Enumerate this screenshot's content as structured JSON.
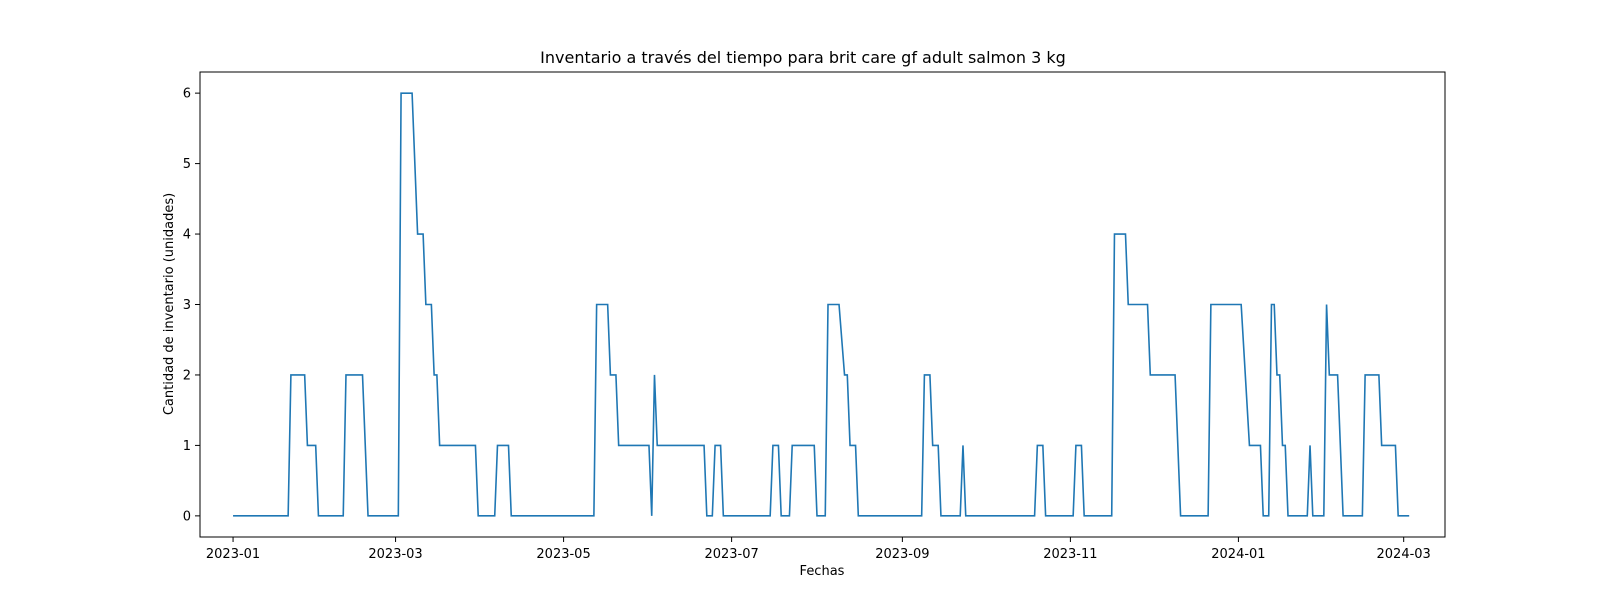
{
  "chart_data": {
    "type": "line",
    "title": "Inventario a través del tiempo para brit care gf adult salmon 3 kg",
    "xlabel": "Fechas",
    "ylabel": "Cantidad de inventario (unidades)",
    "xlim": [
      "2022-12-20",
      "2024-03-16"
    ],
    "ylim": [
      -0.3,
      6.3
    ],
    "xticks": [
      {
        "date": "2023-01-01",
        "label": "2023-01"
      },
      {
        "date": "2023-03-01",
        "label": "2023-03"
      },
      {
        "date": "2023-05-01",
        "label": "2023-05"
      },
      {
        "date": "2023-07-01",
        "label": "2023-07"
      },
      {
        "date": "2023-09-01",
        "label": "2023-09"
      },
      {
        "date": "2023-11-01",
        "label": "2023-11"
      },
      {
        "date": "2024-01-01",
        "label": "2024-01"
      },
      {
        "date": "2024-03-01",
        "label": "2024-03"
      }
    ],
    "yticks": [
      0,
      1,
      2,
      3,
      4,
      5,
      6
    ],
    "grid": false,
    "series_color": "#1f77b4",
    "series": [
      {
        "values": [
          [
            "2023-01-01",
            0
          ],
          [
            "2023-01-21",
            0
          ],
          [
            "2023-01-22",
            2
          ],
          [
            "2023-01-27",
            2
          ],
          [
            "2023-01-28",
            1
          ],
          [
            "2023-01-31",
            1
          ],
          [
            "2023-02-01",
            0
          ],
          [
            "2023-02-10",
            0
          ],
          [
            "2023-02-11",
            2
          ],
          [
            "2023-02-17",
            2
          ],
          [
            "2023-02-19",
            0
          ],
          [
            "2023-03-02",
            0
          ],
          [
            "2023-03-03",
            6
          ],
          [
            "2023-03-07",
            6
          ],
          [
            "2023-03-09",
            4
          ],
          [
            "2023-03-11",
            4
          ],
          [
            "2023-03-12",
            3
          ],
          [
            "2023-03-14",
            3
          ],
          [
            "2023-03-15",
            2
          ],
          [
            "2023-03-16",
            2
          ],
          [
            "2023-03-17",
            1
          ],
          [
            "2023-03-30",
            1
          ],
          [
            "2023-03-31",
            0
          ],
          [
            "2023-04-06",
            0
          ],
          [
            "2023-04-07",
            1
          ],
          [
            "2023-04-11",
            1
          ],
          [
            "2023-04-12",
            0
          ],
          [
            "2023-05-12",
            0
          ],
          [
            "2023-05-13",
            3
          ],
          [
            "2023-05-17",
            3
          ],
          [
            "2023-05-18",
            2
          ],
          [
            "2023-05-20",
            2
          ],
          [
            "2023-05-21",
            1
          ],
          [
            "2023-06-01",
            1
          ],
          [
            "2023-06-02",
            0
          ],
          [
            "2023-06-03",
            2
          ],
          [
            "2023-06-04",
            1
          ],
          [
            "2023-06-21",
            1
          ],
          [
            "2023-06-22",
            0
          ],
          [
            "2023-06-24",
            0
          ],
          [
            "2023-06-25",
            1
          ],
          [
            "2023-06-27",
            1
          ],
          [
            "2023-06-28",
            0
          ],
          [
            "2023-07-15",
            0
          ],
          [
            "2023-07-16",
            1
          ],
          [
            "2023-07-18",
            1
          ],
          [
            "2023-07-19",
            0
          ],
          [
            "2023-07-22",
            0
          ],
          [
            "2023-07-23",
            1
          ],
          [
            "2023-07-31",
            1
          ],
          [
            "2023-08-01",
            0
          ],
          [
            "2023-08-04",
            0
          ],
          [
            "2023-08-05",
            3
          ],
          [
            "2023-08-09",
            3
          ],
          [
            "2023-08-11",
            2
          ],
          [
            "2023-08-12",
            2
          ],
          [
            "2023-08-13",
            1
          ],
          [
            "2023-08-15",
            1
          ],
          [
            "2023-08-16",
            0
          ],
          [
            "2023-09-08",
            0
          ],
          [
            "2023-09-09",
            2
          ],
          [
            "2023-09-11",
            2
          ],
          [
            "2023-09-12",
            1
          ],
          [
            "2023-09-14",
            1
          ],
          [
            "2023-09-15",
            0
          ],
          [
            "2023-09-22",
            0
          ],
          [
            "2023-09-23",
            1
          ],
          [
            "2023-09-24",
            0
          ],
          [
            "2023-10-19",
            0
          ],
          [
            "2023-10-20",
            1
          ],
          [
            "2023-10-22",
            1
          ],
          [
            "2023-10-23",
            0
          ],
          [
            "2023-11-02",
            0
          ],
          [
            "2023-11-03",
            1
          ],
          [
            "2023-11-05",
            1
          ],
          [
            "2023-11-06",
            0
          ],
          [
            "2023-11-16",
            0
          ],
          [
            "2023-11-17",
            4
          ],
          [
            "2023-11-21",
            4
          ],
          [
            "2023-11-22",
            3
          ],
          [
            "2023-11-29",
            3
          ],
          [
            "2023-11-30",
            2
          ],
          [
            "2023-12-09",
            2
          ],
          [
            "2023-12-11",
            0
          ],
          [
            "2023-12-21",
            0
          ],
          [
            "2023-12-22",
            3
          ],
          [
            "2024-01-02",
            3
          ],
          [
            "2024-01-05",
            1
          ],
          [
            "2024-01-09",
            1
          ],
          [
            "2024-01-10",
            0
          ],
          [
            "2024-01-12",
            0
          ],
          [
            "2024-01-13",
            3
          ],
          [
            "2024-01-14",
            3
          ],
          [
            "2024-01-15",
            2
          ],
          [
            "2024-01-16",
            2
          ],
          [
            "2024-01-17",
            1
          ],
          [
            "2024-01-18",
            1
          ],
          [
            "2024-01-19",
            0
          ],
          [
            "2024-01-26",
            0
          ],
          [
            "2024-01-27",
            1
          ],
          [
            "2024-01-28",
            0
          ],
          [
            "2024-02-01",
            0
          ],
          [
            "2024-02-02",
            3
          ],
          [
            "2024-02-03",
            2
          ],
          [
            "2024-02-06",
            2
          ],
          [
            "2024-02-08",
            0
          ],
          [
            "2024-02-15",
            0
          ],
          [
            "2024-02-16",
            2
          ],
          [
            "2024-02-21",
            2
          ],
          [
            "2024-02-22",
            1
          ],
          [
            "2024-02-27",
            1
          ],
          [
            "2024-02-28",
            0
          ],
          [
            "2024-03-03",
            0
          ]
        ]
      }
    ]
  }
}
